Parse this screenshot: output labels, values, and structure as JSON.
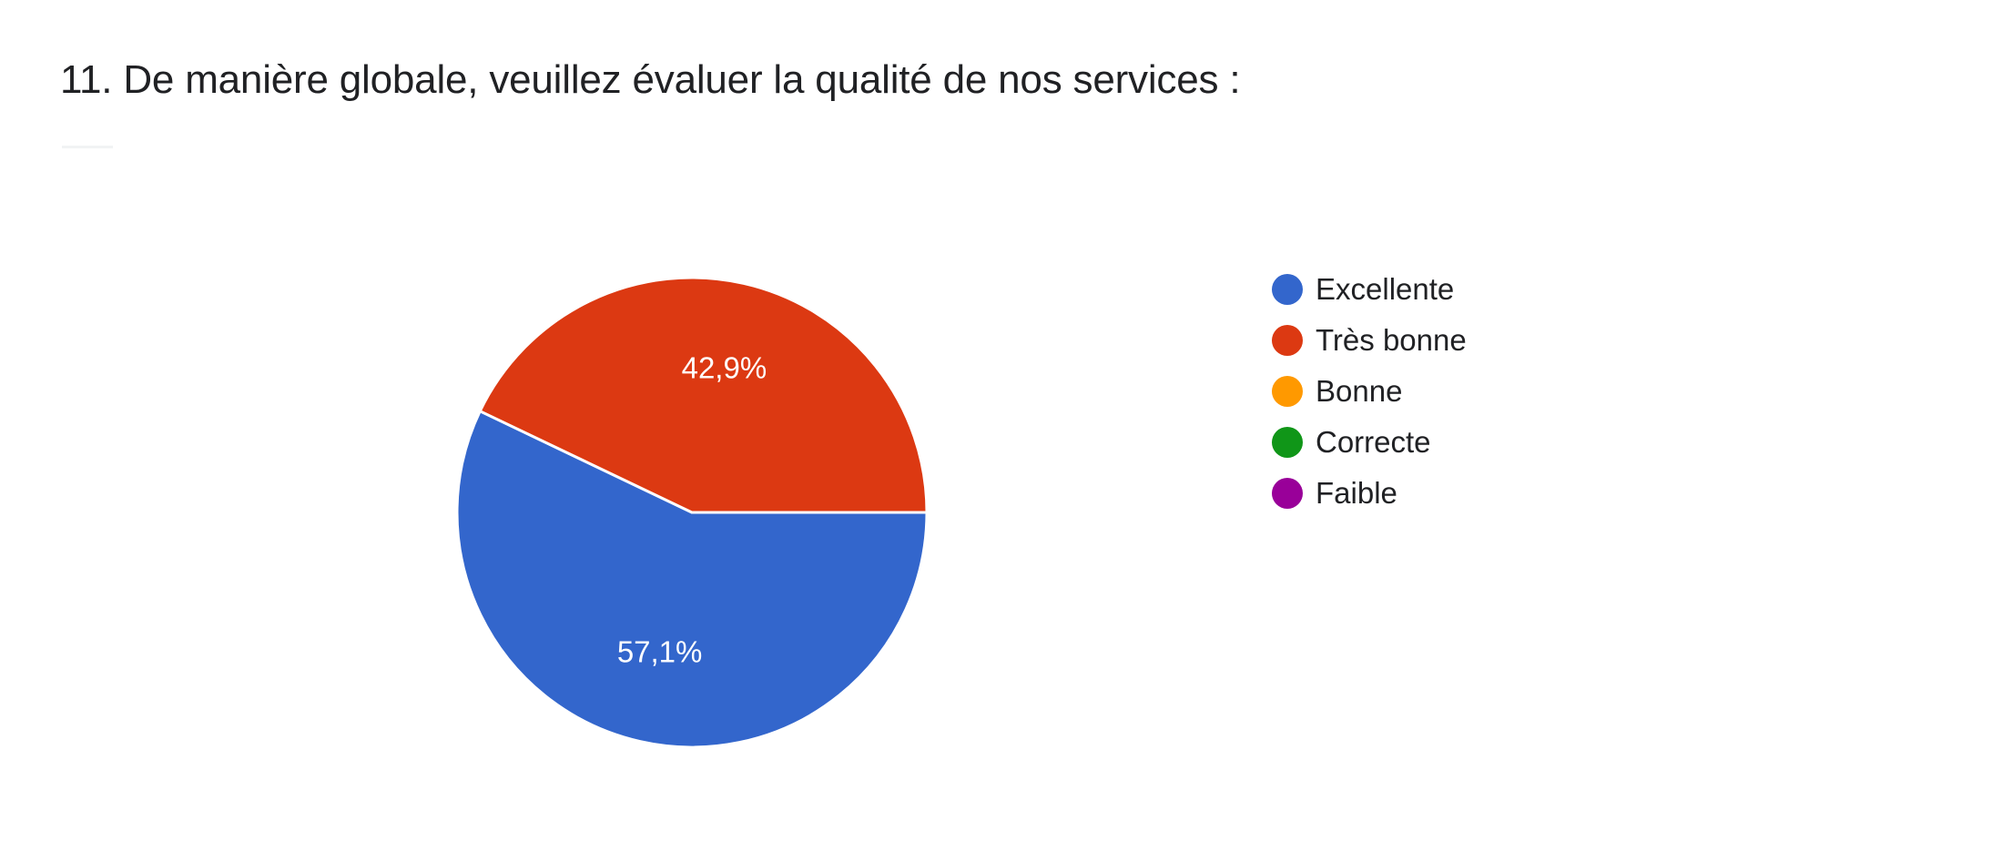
{
  "question": {
    "title": "11. De manière globale, veuillez évaluer la qualité de nos services :"
  },
  "chart_data": {
    "type": "pie",
    "categories": [
      "Excellente",
      "Très bonne",
      "Bonne",
      "Correcte",
      "Faible"
    ],
    "values": [
      57.1,
      42.9,
      0,
      0,
      0
    ],
    "slice_labels": [
      "57,1%",
      "42,9%",
      "",
      "",
      ""
    ],
    "colors": [
      "#3366cc",
      "#dc3912",
      "#ff9900",
      "#109618",
      "#990099"
    ],
    "legend_position": "right"
  }
}
